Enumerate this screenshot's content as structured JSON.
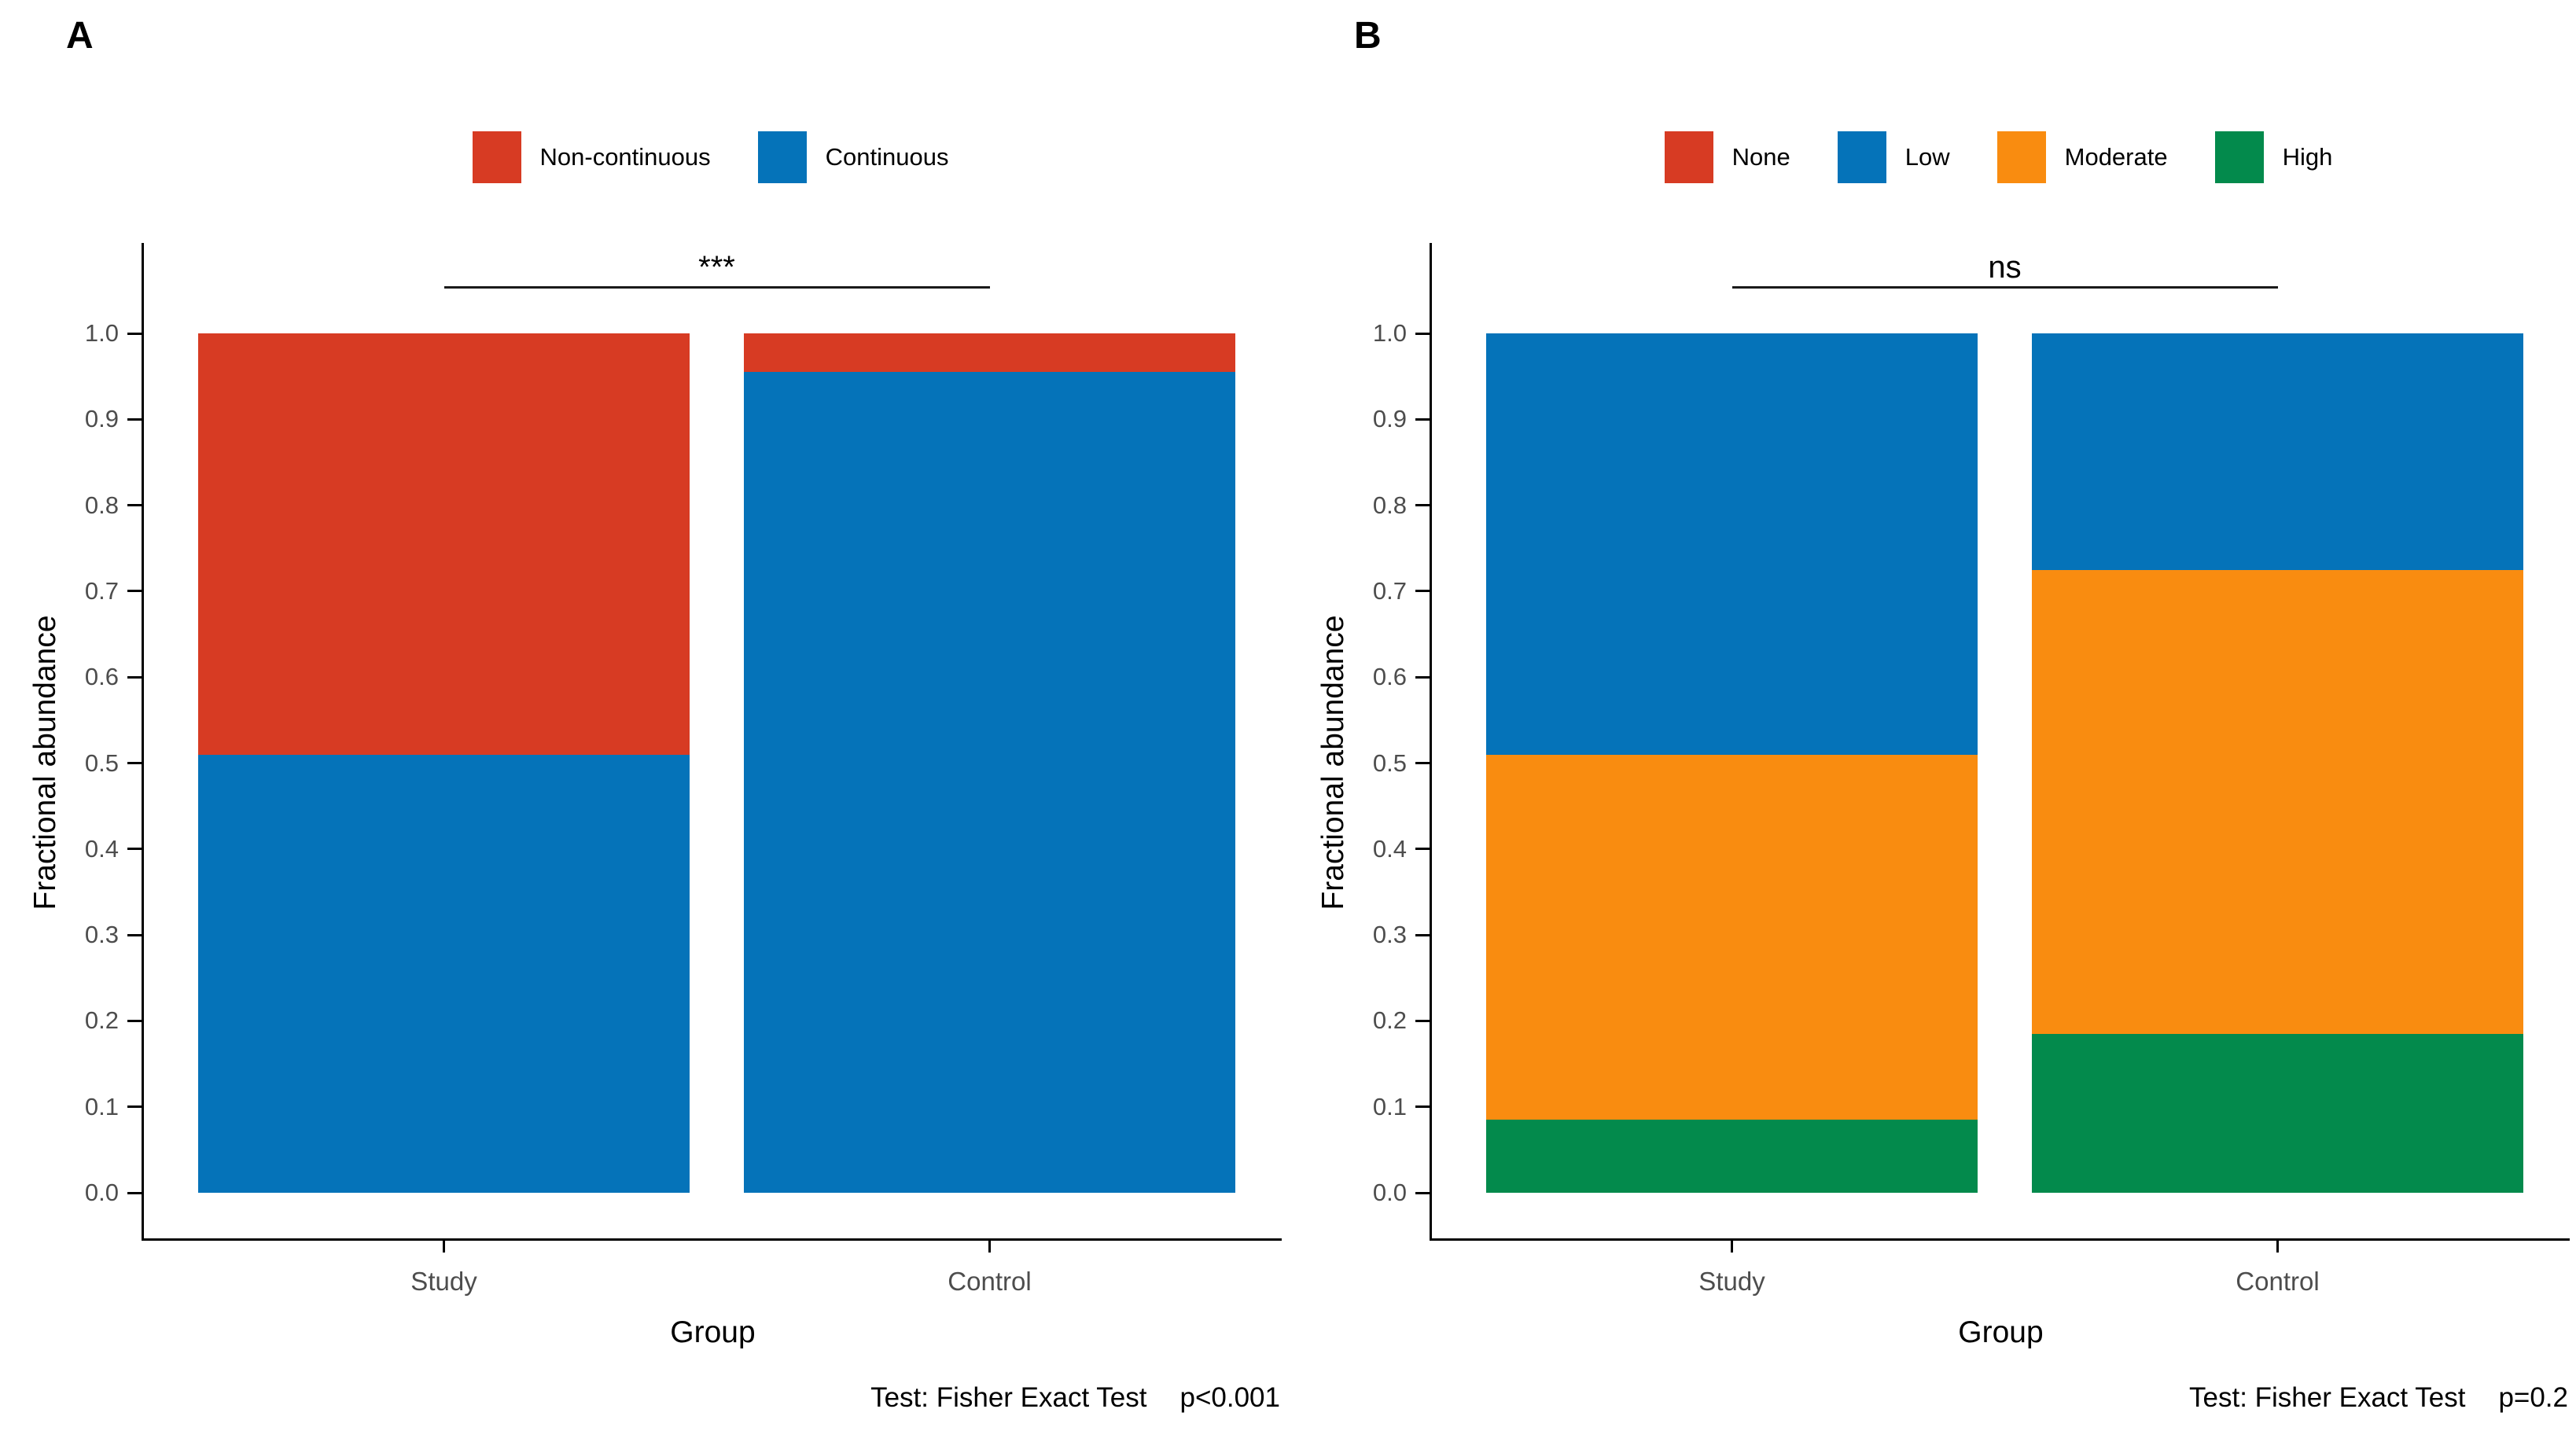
{
  "page": {
    "background": "#ffffff"
  },
  "palette": {
    "red": "#d73b23",
    "blue": "#0573b9",
    "orange": "#f98c10",
    "green": "#038a4c",
    "axis_line": "#000000",
    "tick_label": "#4d4d4d"
  },
  "chart_data": [
    {
      "type": "bar",
      "stacked": true,
      "panel_label": "A",
      "categories": [
        "Study",
        "Control"
      ],
      "series": [
        {
          "name": "Continuous",
          "color_key": "blue",
          "values": [
            0.51,
            0.955
          ]
        },
        {
          "name": "Non-continuous",
          "color_key": "red",
          "values": [
            0.49,
            0.045
          ]
        }
      ],
      "legend": [
        {
          "label": "Non-continuous",
          "color_key": "red"
        },
        {
          "label": "Continuous",
          "color_key": "blue"
        }
      ],
      "legend_position": "top",
      "grid": false,
      "xlabel": "Group",
      "ylabel": "Fractional abundance",
      "ylim": [
        0.0,
        1.0
      ],
      "yticks": [
        "0.0",
        "0.1",
        "0.2",
        "0.3",
        "0.4",
        "0.5",
        "0.6",
        "0.7",
        "0.8",
        "0.9",
        "1.0"
      ],
      "significance": {
        "label": "***",
        "from": "Study",
        "to": "Control"
      },
      "caption": {
        "test": "Test: Fisher Exact Test",
        "p": "p<0.001"
      }
    },
    {
      "type": "bar",
      "stacked": true,
      "panel_label": "B",
      "categories": [
        "Study",
        "Control"
      ],
      "series": [
        {
          "name": "High",
          "color_key": "green",
          "values": [
            0.085,
            0.185
          ]
        },
        {
          "name": "Moderate",
          "color_key": "orange",
          "values": [
            0.425,
            0.54
          ]
        },
        {
          "name": "Low",
          "color_key": "blue",
          "values": [
            0.49,
            0.275
          ]
        },
        {
          "name": "None",
          "color_key": "red",
          "values": [
            0.0,
            0.0
          ]
        }
      ],
      "legend": [
        {
          "label": "None",
          "color_key": "red"
        },
        {
          "label": "Low",
          "color_key": "blue"
        },
        {
          "label": "Moderate",
          "color_key": "orange"
        },
        {
          "label": "High",
          "color_key": "green"
        }
      ],
      "legend_position": "top",
      "grid": false,
      "xlabel": "Group",
      "ylabel": "Fractional abundance",
      "ylim": [
        0.0,
        1.0
      ],
      "yticks": [
        "0.0",
        "0.1",
        "0.2",
        "0.3",
        "0.4",
        "0.5",
        "0.6",
        "0.7",
        "0.8",
        "0.9",
        "1.0"
      ],
      "significance": {
        "label": "ns",
        "from": "Study",
        "to": "Control"
      },
      "caption": {
        "test": "Test: Fisher Exact Test",
        "p": "p=0.2"
      }
    }
  ]
}
